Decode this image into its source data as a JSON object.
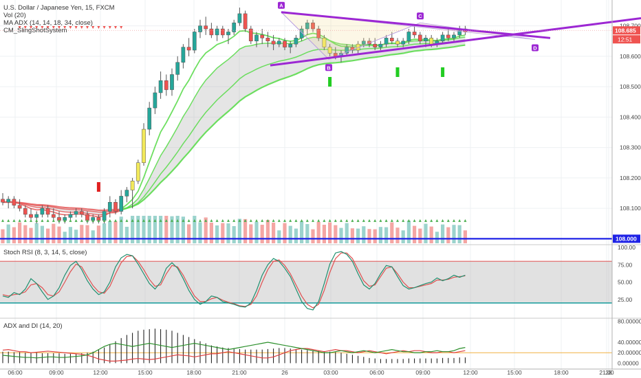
{
  "chart_data": {
    "type": "candlestick",
    "symbol_title": "U.S. Dollar / Japanese Yen, 15, FXCM",
    "indicators": [
      "Vol (20)",
      "MA ADX (14, 14, 18, 34, close)",
      "CM_SlingShotSystem"
    ],
    "price_ticks": [
      "108.700",
      "108.600",
      "108.500",
      "108.400",
      "108.300",
      "108.200",
      "108.100"
    ],
    "ylim": [
      107.985,
      108.785
    ],
    "last_price": "108.685",
    "countdown": "12:51",
    "horizontal_level": "108.000",
    "time_ticks": [
      "06:00",
      "09:00",
      "12:00",
      "15:00",
      "18:00",
      "21:00",
      "26",
      "03:00",
      "06:00",
      "09:00",
      "12:00",
      "15:00",
      "18:00",
      "21:00",
      "28"
    ],
    "pattern_points": [
      "A",
      "B",
      "C",
      "D"
    ],
    "candles": [
      [
        108.13,
        108.15,
        108.11,
        108.12
      ],
      [
        108.12,
        108.14,
        108.1,
        108.13
      ],
      [
        108.13,
        108.14,
        108.1,
        108.11
      ],
      [
        108.11,
        108.13,
        108.09,
        108.1
      ],
      [
        108.1,
        108.11,
        108.07,
        108.08
      ],
      [
        108.08,
        108.1,
        108.06,
        108.07
      ],
      [
        108.07,
        108.09,
        108.05,
        108.08
      ],
      [
        108.08,
        108.11,
        108.07,
        108.1
      ],
      [
        108.1,
        108.11,
        108.07,
        108.08
      ],
      [
        108.08,
        108.1,
        108.06,
        108.07
      ],
      [
        108.07,
        108.09,
        108.05,
        108.06
      ],
      [
        108.06,
        108.08,
        108.05,
        108.07
      ],
      [
        108.07,
        108.09,
        108.06,
        108.08
      ],
      [
        108.08,
        108.1,
        108.07,
        108.09
      ],
      [
        108.09,
        108.1,
        108.07,
        108.08
      ],
      [
        108.08,
        108.09,
        108.05,
        108.06
      ],
      [
        108.06,
        108.08,
        108.05,
        108.07
      ],
      [
        108.07,
        108.08,
        108.05,
        108.06
      ],
      [
        108.06,
        108.1,
        108.05,
        108.09
      ],
      [
        108.09,
        108.14,
        108.07,
        108.12
      ],
      [
        108.12,
        108.13,
        108.08,
        108.09
      ],
      [
        108.09,
        108.16,
        108.08,
        108.14
      ],
      [
        108.14,
        108.17,
        108.12,
        108.16
      ],
      [
        108.16,
        108.2,
        108.1,
        108.19
      ],
      [
        108.19,
        108.26,
        108.18,
        108.25
      ],
      [
        108.25,
        108.38,
        108.24,
        108.36
      ],
      [
        108.36,
        108.45,
        108.34,
        108.43
      ],
      [
        108.43,
        108.5,
        108.41,
        108.48
      ],
      [
        108.48,
        108.55,
        108.46,
        108.52
      ],
      [
        108.52,
        108.54,
        108.47,
        108.49
      ],
      [
        108.49,
        108.56,
        108.47,
        108.54
      ],
      [
        108.54,
        108.6,
        108.52,
        108.58
      ],
      [
        108.58,
        108.64,
        108.56,
        108.63
      ],
      [
        108.63,
        108.66,
        108.6,
        108.62
      ],
      [
        108.62,
        108.69,
        108.61,
        108.68
      ],
      [
        108.68,
        108.72,
        108.66,
        108.7
      ],
      [
        108.7,
        108.73,
        108.67,
        108.69
      ],
      [
        108.69,
        108.71,
        108.66,
        108.67
      ],
      [
        108.67,
        108.7,
        108.65,
        108.69
      ],
      [
        108.69,
        108.7,
        108.66,
        108.67
      ],
      [
        108.67,
        108.69,
        108.64,
        108.68
      ],
      [
        108.68,
        108.72,
        108.67,
        108.71
      ],
      [
        108.71,
        108.76,
        108.7,
        108.74
      ],
      [
        108.74,
        108.75,
        108.68,
        108.69
      ],
      [
        108.69,
        108.7,
        108.64,
        108.65
      ],
      [
        108.65,
        108.68,
        108.63,
        108.67
      ],
      [
        108.67,
        108.69,
        108.64,
        108.66
      ],
      [
        108.66,
        108.68,
        108.63,
        108.65
      ],
      [
        108.65,
        108.67,
        108.62,
        108.64
      ],
      [
        108.64,
        108.66,
        108.63,
        108.65
      ],
      [
        108.65,
        108.66,
        108.62,
        108.63
      ],
      [
        108.63,
        108.65,
        108.61,
        108.64
      ],
      [
        108.64,
        108.67,
        108.63,
        108.66
      ],
      [
        108.66,
        108.7,
        108.65,
        108.69
      ],
      [
        108.69,
        108.72,
        108.67,
        108.71
      ],
      [
        108.71,
        108.72,
        108.68,
        108.69
      ],
      [
        108.69,
        108.7,
        108.65,
        108.66
      ],
      [
        108.66,
        108.67,
        108.62,
        108.63
      ],
      [
        108.63,
        108.64,
        108.6,
        108.61
      ],
      [
        108.61,
        108.63,
        108.59,
        108.6
      ],
      [
        108.6,
        108.62,
        108.58,
        108.61
      ],
      [
        108.61,
        108.64,
        108.6,
        108.63
      ],
      [
        108.63,
        108.64,
        108.61,
        108.62
      ],
      [
        108.62,
        108.65,
        108.61,
        108.64
      ],
      [
        108.64,
        108.66,
        108.63,
        108.65
      ],
      [
        108.65,
        108.66,
        108.63,
        108.64
      ],
      [
        108.64,
        108.66,
        108.62,
        108.63
      ],
      [
        108.63,
        108.65,
        108.62,
        108.64
      ],
      [
        108.64,
        108.67,
        108.63,
        108.66
      ],
      [
        108.66,
        108.68,
        108.64,
        108.65
      ],
      [
        108.65,
        108.66,
        108.63,
        108.64
      ],
      [
        108.64,
        108.66,
        108.63,
        108.65
      ],
      [
        108.65,
        108.69,
        108.64,
        108.68
      ],
      [
        108.68,
        108.7,
        108.66,
        108.67
      ],
      [
        108.67,
        108.68,
        108.64,
        108.65
      ],
      [
        108.65,
        108.67,
        108.63,
        108.66
      ],
      [
        108.66,
        108.67,
        108.63,
        108.64
      ],
      [
        108.64,
        108.66,
        108.63,
        108.65
      ],
      [
        108.65,
        108.68,
        108.64,
        108.67
      ],
      [
        108.67,
        108.69,
        108.65,
        108.66
      ],
      [
        108.66,
        108.68,
        108.65,
        108.67
      ],
      [
        108.67,
        108.7,
        108.66,
        108.69
      ],
      [
        108.69,
        108.7,
        108.67,
        108.68
      ]
    ],
    "volume_panel": {
      "title": "Vol (20)"
    },
    "stoch_rsi": {
      "title": "Stoch RSI (8, 3, 14, 5, close)",
      "ticks": [
        "100.00",
        "75.00",
        "50.00",
        "25.00"
      ],
      "ylim": [
        0,
        100
      ],
      "upper_band": 80,
      "lower_band": 20,
      "k": [
        30,
        28,
        35,
        32,
        40,
        55,
        48,
        36,
        25,
        30,
        42,
        60,
        74,
        80,
        68,
        52,
        40,
        32,
        36,
        50,
        72,
        85,
        90,
        88,
        76,
        62,
        48,
        40,
        50,
        70,
        78,
        70,
        55,
        38,
        25,
        18,
        22,
        30,
        28,
        22,
        20,
        18,
        15,
        14,
        20,
        38,
        60,
        75,
        84,
        80,
        70,
        58,
        40,
        22,
        12,
        10,
        22,
        48,
        76,
        92,
        94,
        90,
        80,
        62,
        46,
        40,
        48,
        62,
        74,
        72,
        58,
        45,
        40,
        42,
        45,
        48,
        50,
        56,
        52,
        55,
        60,
        57,
        60
      ],
      "d": [
        32,
        30,
        32,
        33,
        36,
        46,
        48,
        42,
        32,
        30,
        36,
        50,
        65,
        76,
        72,
        58,
        45,
        36,
        34,
        44,
        62,
        78,
        87,
        88,
        80,
        68,
        54,
        44,
        46,
        62,
        74,
        72,
        60,
        44,
        30,
        22,
        22,
        26,
        28,
        24,
        21,
        19,
        16,
        15,
        18,
        30,
        50,
        68,
        80,
        82,
        74,
        62,
        46,
        30,
        18,
        13,
        18,
        38,
        64,
        84,
        92,
        92,
        84,
        68,
        52,
        44,
        46,
        58,
        70,
        72,
        62,
        50,
        42,
        42,
        44,
        46,
        48,
        53,
        53,
        54,
        57,
        58,
        59
      ]
    },
    "adx_di": {
      "title": "ADX and DI (14, 20)",
      "ticks": [
        "80.00000",
        "40.00000",
        "20.00000",
        "0.00000"
      ],
      "ylim": [
        -6,
        86
      ],
      "threshold": 20,
      "adx": [
        22,
        22,
        21,
        21,
        20,
        20,
        20,
        19,
        19,
        19,
        19,
        18,
        18,
        18,
        19,
        20,
        22,
        26,
        30,
        36,
        42,
        48,
        54,
        58,
        62,
        64,
        65,
        66,
        65,
        64,
        62,
        58,
        54,
        50,
        46,
        42,
        38,
        34,
        32,
        30,
        29,
        28,
        27,
        26,
        26,
        26,
        26,
        27,
        28,
        29,
        29,
        28,
        27,
        26,
        25,
        24,
        24,
        23,
        22,
        21,
        20,
        18,
        16,
        14,
        12,
        10,
        9,
        8,
        8,
        8,
        8,
        8,
        9,
        9,
        9,
        9,
        9,
        9,
        10,
        10,
        10,
        11,
        11
      ],
      "di_plus": [
        15,
        14,
        13,
        12,
        11,
        11,
        10,
        11,
        12,
        12,
        11,
        11,
        12,
        13,
        14,
        16,
        20,
        26,
        32,
        36,
        38,
        36,
        34,
        32,
        34,
        36,
        38,
        36,
        34,
        32,
        30,
        32,
        34,
        36,
        38,
        36,
        34,
        32,
        30,
        28,
        26,
        28,
        30,
        32,
        34,
        36,
        38,
        40,
        38,
        36,
        34,
        32,
        30,
        28,
        26,
        24,
        22,
        20,
        20,
        22,
        24,
        22,
        20,
        22,
        24,
        22,
        20,
        22,
        24,
        26,
        24,
        22,
        22,
        20,
        20,
        22,
        22,
        24,
        22,
        22,
        24,
        28,
        30
      ],
      "di_minus": [
        25,
        26,
        24,
        22,
        22,
        20,
        21,
        22,
        23,
        22,
        21,
        20,
        19,
        18,
        17,
        15,
        12,
        8,
        6,
        4,
        4,
        5,
        6,
        8,
        9,
        8,
        7,
        8,
        10,
        12,
        14,
        16,
        15,
        14,
        12,
        14,
        16,
        18,
        18,
        20,
        22,
        20,
        18,
        16,
        14,
        12,
        10,
        10,
        12,
        16,
        20,
        24,
        26,
        28,
        28,
        26,
        24,
        22,
        24,
        26,
        24,
        24,
        22,
        20,
        22,
        24,
        22,
        20,
        18,
        20,
        22,
        24,
        22,
        24,
        24,
        22,
        20,
        20,
        22,
        22,
        20,
        22,
        24
      ]
    }
  },
  "colors": {
    "up": "#26a69a",
    "down": "#ef5350",
    "accent_purple": "#9c27d3",
    "blue_line": "#1e22e6",
    "green": "#5ddc4f",
    "red_ribbon": "#e85a5a",
    "highlight_green": "#3fd43f",
    "highlight_yellow": "#f2e95a"
  },
  "header": {
    "title": "U.S. Dollar / Japanese Yen, 15, FXCM",
    "vol": "Vol (20)",
    "ma_adx": "MA ADX (14, 14, 18, 34, close)",
    "sling": "CM_SlingShotSystem"
  }
}
